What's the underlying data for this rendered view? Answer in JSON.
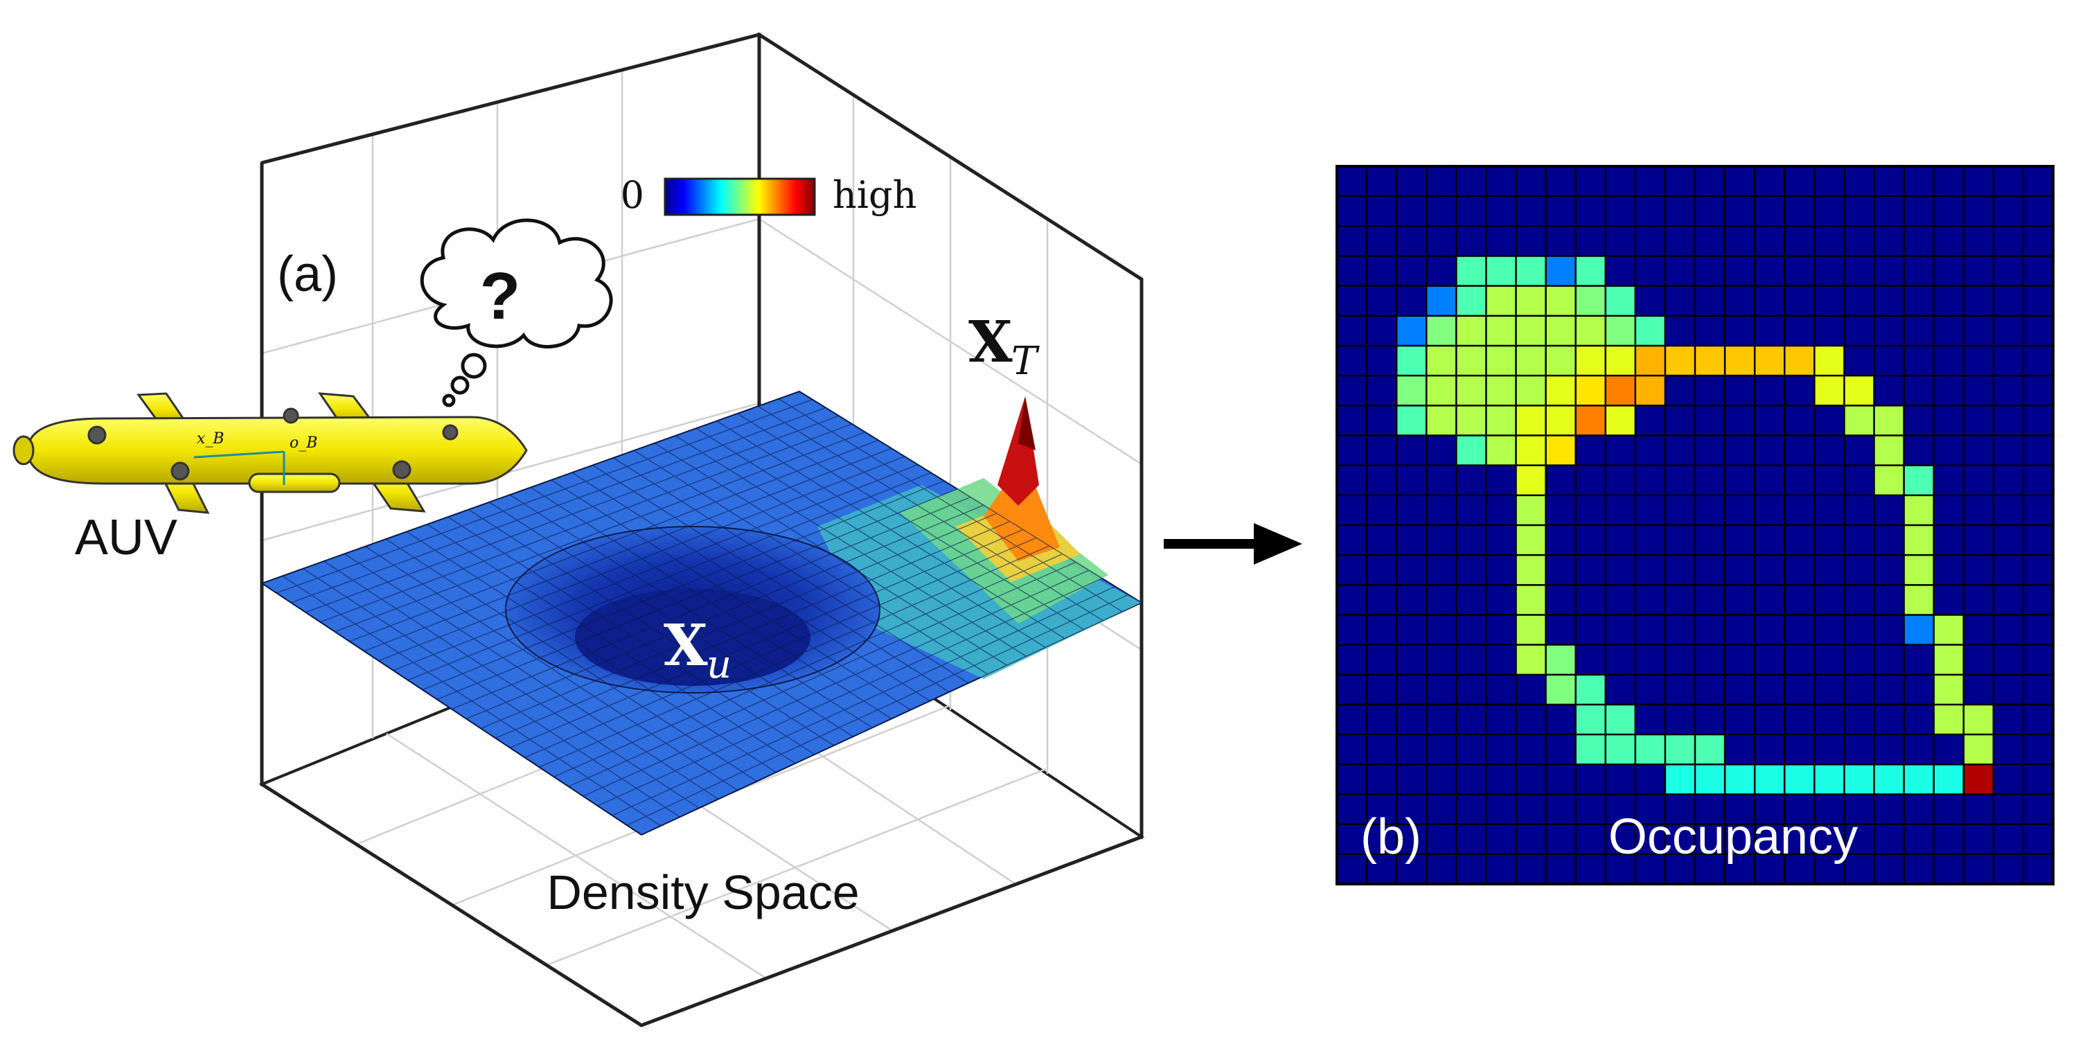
{
  "panel_a": {
    "tag": "(a)",
    "caption": "Density Space",
    "vehicle_label": "AUV",
    "thought_symbol": "?",
    "vehicle_frame_labels": [
      "x_B",
      "o_B"
    ],
    "colorbar": {
      "low_label": "0",
      "high_label": "high"
    },
    "peak_symbol": {
      "base": "X",
      "subscript": "T"
    },
    "pit_symbol": {
      "base": "X",
      "subscript": "u"
    }
  },
  "panel_b": {
    "tag": "(b)",
    "title": "Occupancy"
  },
  "colors": {
    "grid_background": "#00008f",
    "colormap": "jet",
    "auv_body": "#f2e600"
  },
  "chart_data": {
    "type": "heatmap",
    "title": "Occupancy",
    "grid_size": [
      24,
      24
    ],
    "value_range": [
      0,
      1
    ],
    "cells": [
      [
        4,
        3,
        0.45
      ],
      [
        5,
        3,
        0.45
      ],
      [
        6,
        3,
        0.45
      ],
      [
        7,
        3,
        0.25
      ],
      [
        8,
        3,
        0.45
      ],
      [
        3,
        4,
        0.25
      ],
      [
        4,
        4,
        0.45
      ],
      [
        5,
        4,
        0.55
      ],
      [
        6,
        4,
        0.55
      ],
      [
        7,
        4,
        0.55
      ],
      [
        8,
        4,
        0.5
      ],
      [
        9,
        4,
        0.45
      ],
      [
        2,
        5,
        0.25
      ],
      [
        3,
        5,
        0.5
      ],
      [
        4,
        5,
        0.55
      ],
      [
        5,
        5,
        0.55
      ],
      [
        6,
        5,
        0.55
      ],
      [
        7,
        5,
        0.55
      ],
      [
        8,
        5,
        0.55
      ],
      [
        9,
        5,
        0.5
      ],
      [
        10,
        5,
        0.45
      ],
      [
        2,
        6,
        0.45
      ],
      [
        3,
        6,
        0.55
      ],
      [
        4,
        6,
        0.55
      ],
      [
        5,
        6,
        0.55
      ],
      [
        6,
        6,
        0.55
      ],
      [
        7,
        6,
        0.55
      ],
      [
        8,
        6,
        0.6
      ],
      [
        9,
        6,
        0.6
      ],
      [
        10,
        6,
        0.7
      ],
      [
        11,
        6,
        0.68
      ],
      [
        12,
        6,
        0.68
      ],
      [
        13,
        6,
        0.68
      ],
      [
        14,
        6,
        0.68
      ],
      [
        15,
        6,
        0.68
      ],
      [
        16,
        6,
        0.6
      ],
      [
        2,
        7,
        0.5
      ],
      [
        3,
        7,
        0.55
      ],
      [
        4,
        7,
        0.55
      ],
      [
        5,
        7,
        0.55
      ],
      [
        6,
        7,
        0.55
      ],
      [
        7,
        7,
        0.6
      ],
      [
        8,
        7,
        0.65
      ],
      [
        9,
        7,
        0.75
      ],
      [
        10,
        7,
        0.7
      ],
      [
        16,
        7,
        0.6
      ],
      [
        17,
        7,
        0.6
      ],
      [
        2,
        8,
        0.45
      ],
      [
        3,
        8,
        0.55
      ],
      [
        4,
        8,
        0.55
      ],
      [
        5,
        8,
        0.55
      ],
      [
        6,
        8,
        0.6
      ],
      [
        7,
        8,
        0.6
      ],
      [
        8,
        8,
        0.75
      ],
      [
        9,
        8,
        0.6
      ],
      [
        17,
        8,
        0.55
      ],
      [
        18,
        8,
        0.55
      ],
      [
        4,
        9,
        0.45
      ],
      [
        5,
        9,
        0.55
      ],
      [
        6,
        9,
        0.6
      ],
      [
        7,
        9,
        0.65
      ],
      [
        18,
        9,
        0.55
      ],
      [
        6,
        10,
        0.6
      ],
      [
        18,
        10,
        0.55
      ],
      [
        19,
        10,
        0.45
      ],
      [
        6,
        11,
        0.55
      ],
      [
        19,
        11,
        0.55
      ],
      [
        6,
        12,
        0.55
      ],
      [
        19,
        12,
        0.55
      ],
      [
        6,
        13,
        0.55
      ],
      [
        19,
        13,
        0.55
      ],
      [
        6,
        14,
        0.55
      ],
      [
        19,
        14,
        0.55
      ],
      [
        6,
        15,
        0.55
      ],
      [
        19,
        15,
        0.25
      ],
      [
        20,
        15,
        0.55
      ],
      [
        6,
        16,
        0.55
      ],
      [
        7,
        16,
        0.5
      ],
      [
        20,
        16,
        0.55
      ],
      [
        7,
        17,
        0.5
      ],
      [
        8,
        17,
        0.45
      ],
      [
        20,
        17,
        0.55
      ],
      [
        8,
        18,
        0.45
      ],
      [
        9,
        18,
        0.45
      ],
      [
        20,
        18,
        0.55
      ],
      [
        21,
        18,
        0.55
      ],
      [
        8,
        19,
        0.45
      ],
      [
        9,
        19,
        0.45
      ],
      [
        10,
        19,
        0.45
      ],
      [
        11,
        19,
        0.45
      ],
      [
        12,
        19,
        0.45
      ],
      [
        21,
        19,
        0.55
      ],
      [
        11,
        20,
        0.4
      ],
      [
        12,
        20,
        0.4
      ],
      [
        13,
        20,
        0.4
      ],
      [
        14,
        20,
        0.4
      ],
      [
        15,
        20,
        0.4
      ],
      [
        16,
        20,
        0.4
      ],
      [
        17,
        20,
        0.4
      ],
      [
        18,
        20,
        0.4
      ],
      [
        19,
        20,
        0.4
      ],
      [
        20,
        20,
        0.4
      ],
      [
        21,
        20,
        0.95
      ]
    ]
  }
}
